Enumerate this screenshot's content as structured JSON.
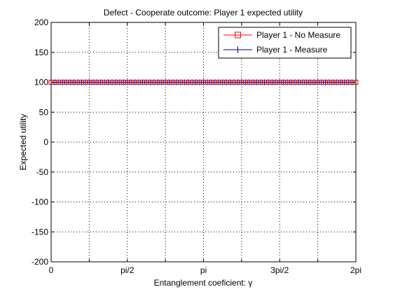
{
  "chart_data": {
    "type": "line",
    "title": "Defect - Cooperate outcome: Player 1 expected utility",
    "xlabel": "Entanglement coeficient: γ",
    "ylabel": "Expected utility",
    "xlim": [
      0,
      6.283185307179586
    ],
    "ylim": [
      -200,
      200
    ],
    "grid": true,
    "legend_position": "top-right",
    "x_ticks": [
      {
        "value": 0,
        "label": "0"
      },
      {
        "value": 1.5707963267948966,
        "label": "pi/2"
      },
      {
        "value": 3.141592653589793,
        "label": "pi"
      },
      {
        "value": 4.71238898038469,
        "label": "3pi/2"
      },
      {
        "value": 6.283185307179586,
        "label": "2pi"
      }
    ],
    "x_grid_values": [
      0.7853981633974483,
      1.5707963267948966,
      2.356194490192345,
      3.141592653589793,
      3.9269908169872414,
      4.71238898038469,
      5.497787143782138
    ],
    "y_ticks": [
      {
        "value": 200,
        "label": "200"
      },
      {
        "value": 150,
        "label": "150"
      },
      {
        "value": 100,
        "label": "100"
      },
      {
        "value": 50,
        "label": "50"
      },
      {
        "value": 0,
        "label": "0"
      },
      {
        "value": -50,
        "label": "-50"
      },
      {
        "value": -100,
        "label": "-100"
      },
      {
        "value": -150,
        "label": "-150"
      },
      {
        "value": -200,
        "label": "-200"
      }
    ],
    "sample_count": 81,
    "series": [
      {
        "name": "Player 1 - No Measure",
        "color": "#ff0000",
        "marker": "square",
        "y_constant": 100
      },
      {
        "name": "Player 1 - Measure",
        "color": "#00007f",
        "marker": "plus",
        "y_constant": 100
      }
    ]
  }
}
